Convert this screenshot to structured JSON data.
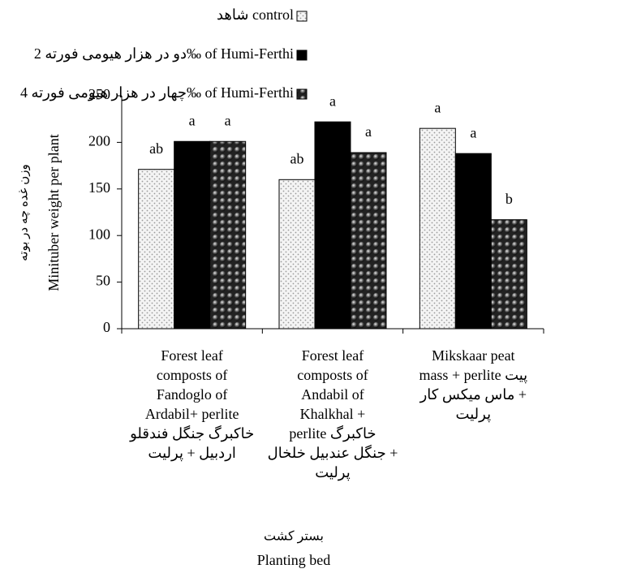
{
  "chart_data": {
    "type": "bar",
    "y_label": [
      "Minituber weight per plant",
      "وزن غده چه در بوته"
    ],
    "x_label": [
      "بستر کشت",
      "Planting bed"
    ],
    "categories": [
      [
        "Forest leaf",
        "composts of",
        "Fandoglo of",
        "Ardabil+ perlite",
        "خاکبرگ جنگل فندقلو",
        "اردبیل + پرلیت"
      ],
      [
        "Forest leaf",
        "composts of",
        "Andabil of",
        "Khalkhal +",
        "perlite خاکبرگ",
        "جنگل عندبیل خلخال +",
        "پرلیت"
      ],
      [
        "Mikskaar peat",
        "mass + perlite پیت",
        "ماس میکس کار +",
        "پرلیت"
      ]
    ],
    "series": [
      {
        "name": "شاهد control",
        "color": "#ffffff",
        "pattern": "dots",
        "values": [
          171,
          160,
          215
        ],
        "significance": [
          "ab",
          "ab",
          "a"
        ]
      },
      {
        "name": "دو در هزار هیومی فورته 2‰ of Humi-Ferthi",
        "color": "#000000",
        "pattern": "solid",
        "values": [
          201,
          222,
          188
        ],
        "significance": [
          "a",
          "a",
          "a"
        ]
      },
      {
        "name": "چهار در هزار هیومی فورته 4‰ of Humi-Ferthi",
        "color": "#2a2a2a",
        "pattern": "spheres",
        "values": [
          201,
          189,
          117
        ],
        "significance": [
          "a",
          "a",
          "b"
        ]
      }
    ],
    "ylim": [
      0,
      250
    ],
    "yticks": [
      0,
      50,
      100,
      150,
      200,
      250
    ],
    "grid": false
  }
}
